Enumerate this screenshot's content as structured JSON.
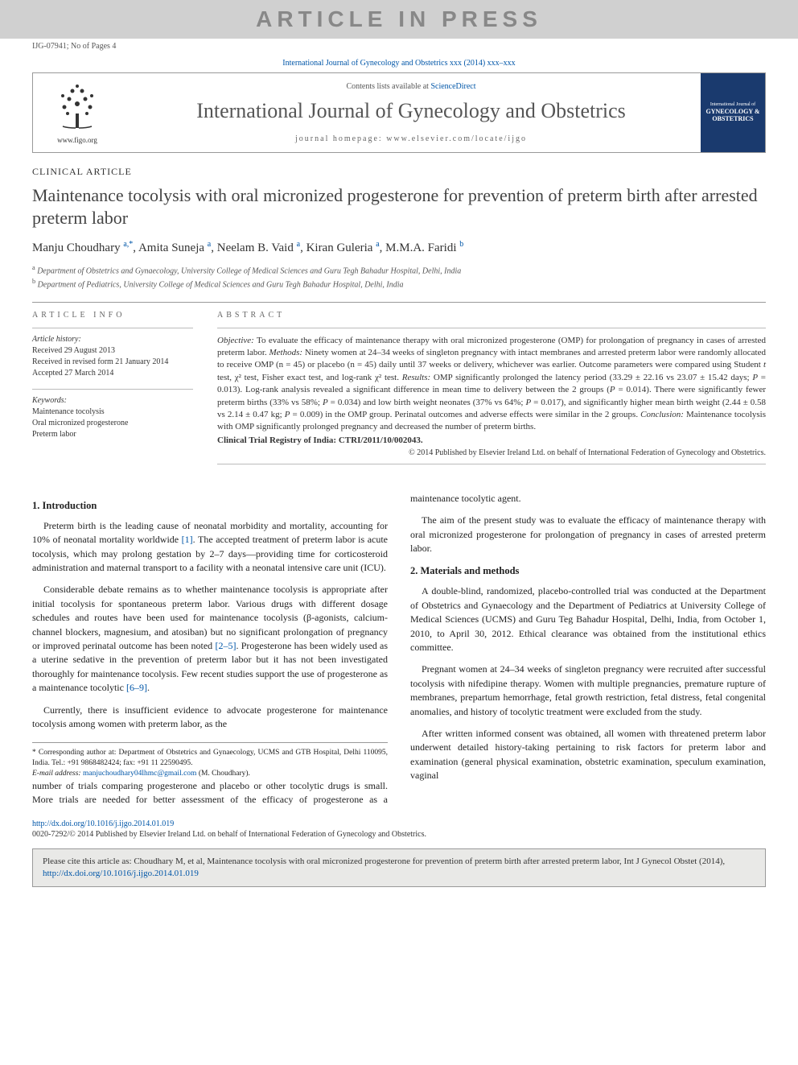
{
  "watermark": "ARTICLE IN PRESS",
  "article_id": "IJG-07941; No of Pages 4",
  "journal_ref": "International Journal of Gynecology and Obstetrics xxx (2014) xxx–xxx",
  "masthead": {
    "logo_caption": "www.figo.org",
    "contents_prefix": "Contents lists available at ",
    "contents_link": "ScienceDirect",
    "journal_title": "International Journal of Gynecology and Obstetrics",
    "homepage_label": "journal homepage: www.elsevier.com/locate/ijgo",
    "cover_text_top": "International Journal of",
    "cover_text_main": "GYNECOLOGY & OBSTETRICS"
  },
  "article_type": "CLINICAL ARTICLE",
  "title": "Maintenance tocolysis with oral micronized progesterone for prevention of preterm birth after arrested preterm labor",
  "authors_html": "Manju Choudhary <sup>a,*</sup>, Amita Suneja <sup>a</sup>, Neelam B. Vaid <sup>a</sup>, Kiran Guleria <sup>a</sup>, M.M.A. Faridi <sup>b</sup>",
  "affiliations": [
    {
      "sup": "a",
      "text": "Department of Obstetrics and Gynaecology, University College of Medical Sciences and Guru Tegh Bahadur Hospital, Delhi, India"
    },
    {
      "sup": "b",
      "text": "Department of Pediatrics, University College of Medical Sciences and Guru Tegh Bahadur Hospital, Delhi, India"
    }
  ],
  "info": {
    "label": "ARTICLE INFO",
    "history_head": "Article history:",
    "history": "Received 29 August 2013\nReceived in revised form 21 January 2014\nAccepted 27 March 2014",
    "keywords_head": "Keywords:",
    "keywords": "Maintenance tocolysis\nOral micronized progesterone\nPreterm labor"
  },
  "abstract": {
    "label": "ABSTRACT",
    "body": "<i>Objective:</i> To evaluate the efficacy of maintenance therapy with oral micronized progesterone (OMP) for prolongation of pregnancy in cases of arrested preterm labor. <i>Methods:</i> Ninety women at 24–34 weeks of singleton pregnancy with intact membranes and arrested preterm labor were randomly allocated to receive OMP (n = 45) or placebo (n = 45) daily until 37 weeks or delivery, whichever was earlier. Outcome parameters were compared using Student <i>t</i> test, χ² test, Fisher exact test, and log-rank χ² test. <i>Results:</i> OMP significantly prolonged the latency period (33.29 ± 22.16 vs 23.07 ± 15.42 days; <i>P</i> = 0.013). Log-rank analysis revealed a significant difference in mean time to delivery between the 2 groups (<i>P</i> = 0.014). There were significantly fewer preterm births (33% vs 58%; <i>P</i> = 0.034) and low birth weight neonates (37% vs 64%; <i>P</i> = 0.017), and significantly higher mean birth weight (2.44 ± 0.58 vs 2.14 ± 0.47 kg; <i>P</i> = 0.009) in the OMP group. Perinatal outcomes and adverse effects were similar in the 2 groups. <i>Conclusion:</i> Maintenance tocolysis with OMP significantly prolonged pregnancy and decreased the number of preterm births.",
    "trial_reg": "Clinical Trial Registry of India: CTRI/2011/10/002043.",
    "copyright": "© 2014 Published by Elsevier Ireland Ltd. on behalf of International Federation of Gynecology and Obstetrics."
  },
  "sections": {
    "intro_head": "1. Introduction",
    "intro_p1": "Preterm birth is the leading cause of neonatal morbidity and mortality, accounting for 10% of neonatal mortality worldwide [1]. The accepted treatment of preterm labor is acute tocolysis, which may prolong gestation by 2–7 days—providing time for corticosteroid administration and maternal transport to a facility with a neonatal intensive care unit (ICU).",
    "intro_p2": "Considerable debate remains as to whether maintenance tocolysis is appropriate after initial tocolysis for spontaneous preterm labor. Various drugs with different dosage schedules and routes have been used for maintenance tocolysis (β-agonists, calcium-channel blockers, magnesium, and atosiban) but no significant prolongation of pregnancy or improved perinatal outcome has been noted [2–5]. Progesterone has been widely used as a uterine sedative in the prevention of preterm labor but it has not been investigated thoroughly for maintenance tocolysis. Few recent studies support the use of progesterone as a maintenance tocolytic [6–9].",
    "intro_p3": "Currently, there is insufficient evidence to advocate progesterone for maintenance tocolysis among women with preterm labor, as the",
    "col2_p1": "number of trials comparing progesterone and placebo or other tocolytic drugs is small. More trials are needed for better assessment of the efficacy of progesterone as a maintenance tocolytic agent.",
    "col2_p2": "The aim of the present study was to evaluate the efficacy of maintenance therapy with oral micronized progesterone for prolongation of pregnancy in cases of arrested preterm labor.",
    "methods_head": "2. Materials and methods",
    "methods_p1": "A double-blind, randomized, placebo-controlled trial was conducted at the Department of Obstetrics and Gynaecology and the Department of Pediatrics at University College of Medical Sciences (UCMS) and Guru Teg Bahadur Hospital, Delhi, India, from October 1, 2010, to April 30, 2012. Ethical clearance was obtained from the institutional ethics committee.",
    "methods_p2": "Pregnant women at 24–34 weeks of singleton pregnancy were recruited after successful tocolysis with nifedipine therapy. Women with multiple pregnancies, premature rupture of membranes, prepartum hemorrhage, fetal growth restriction, fetal distress, fetal congenital anomalies, and history of tocolytic treatment were excluded from the study.",
    "methods_p3": "After written informed consent was obtained, all women with threatened preterm labor underwent detailed history-taking pertaining to risk factors for preterm labor and examination (general physical examination, obstetric examination, speculum examination, vaginal"
  },
  "corr": {
    "note": "* Corresponding author at: Department of Obstetrics and Gynaecology, UCMS and GTB Hospital, Delhi 110095, India. Tel.: +91 9868482424; fax: +91 11 22590495.",
    "email_label": "E-mail address:",
    "email": "manjuchoudhary04lhmc@gmail.com",
    "email_suffix": "(M. Choudhary)."
  },
  "doi": {
    "link": "http://dx.doi.org/10.1016/j.ijgo.2014.01.019",
    "issn_line": "0020-7292/© 2014 Published by Elsevier Ireland Ltd. on behalf of International Federation of Gynecology and Obstetrics."
  },
  "citation": {
    "prefix": "Please cite this article as: Choudhary M, et al, Maintenance tocolysis with oral micronized progesterone for prevention of preterm birth after arrested preterm labor, Int J Gynecol Obstet (2014), ",
    "link": "http://dx.doi.org/10.1016/j.ijgo.2014.01.019"
  },
  "colors": {
    "link": "#0056a8",
    "watermark_bg": "#d0d0d0",
    "watermark_fg": "#888888",
    "cover_bg": "#1a3a6e",
    "citation_bg": "#e9e9e7",
    "rule": "#999999"
  }
}
